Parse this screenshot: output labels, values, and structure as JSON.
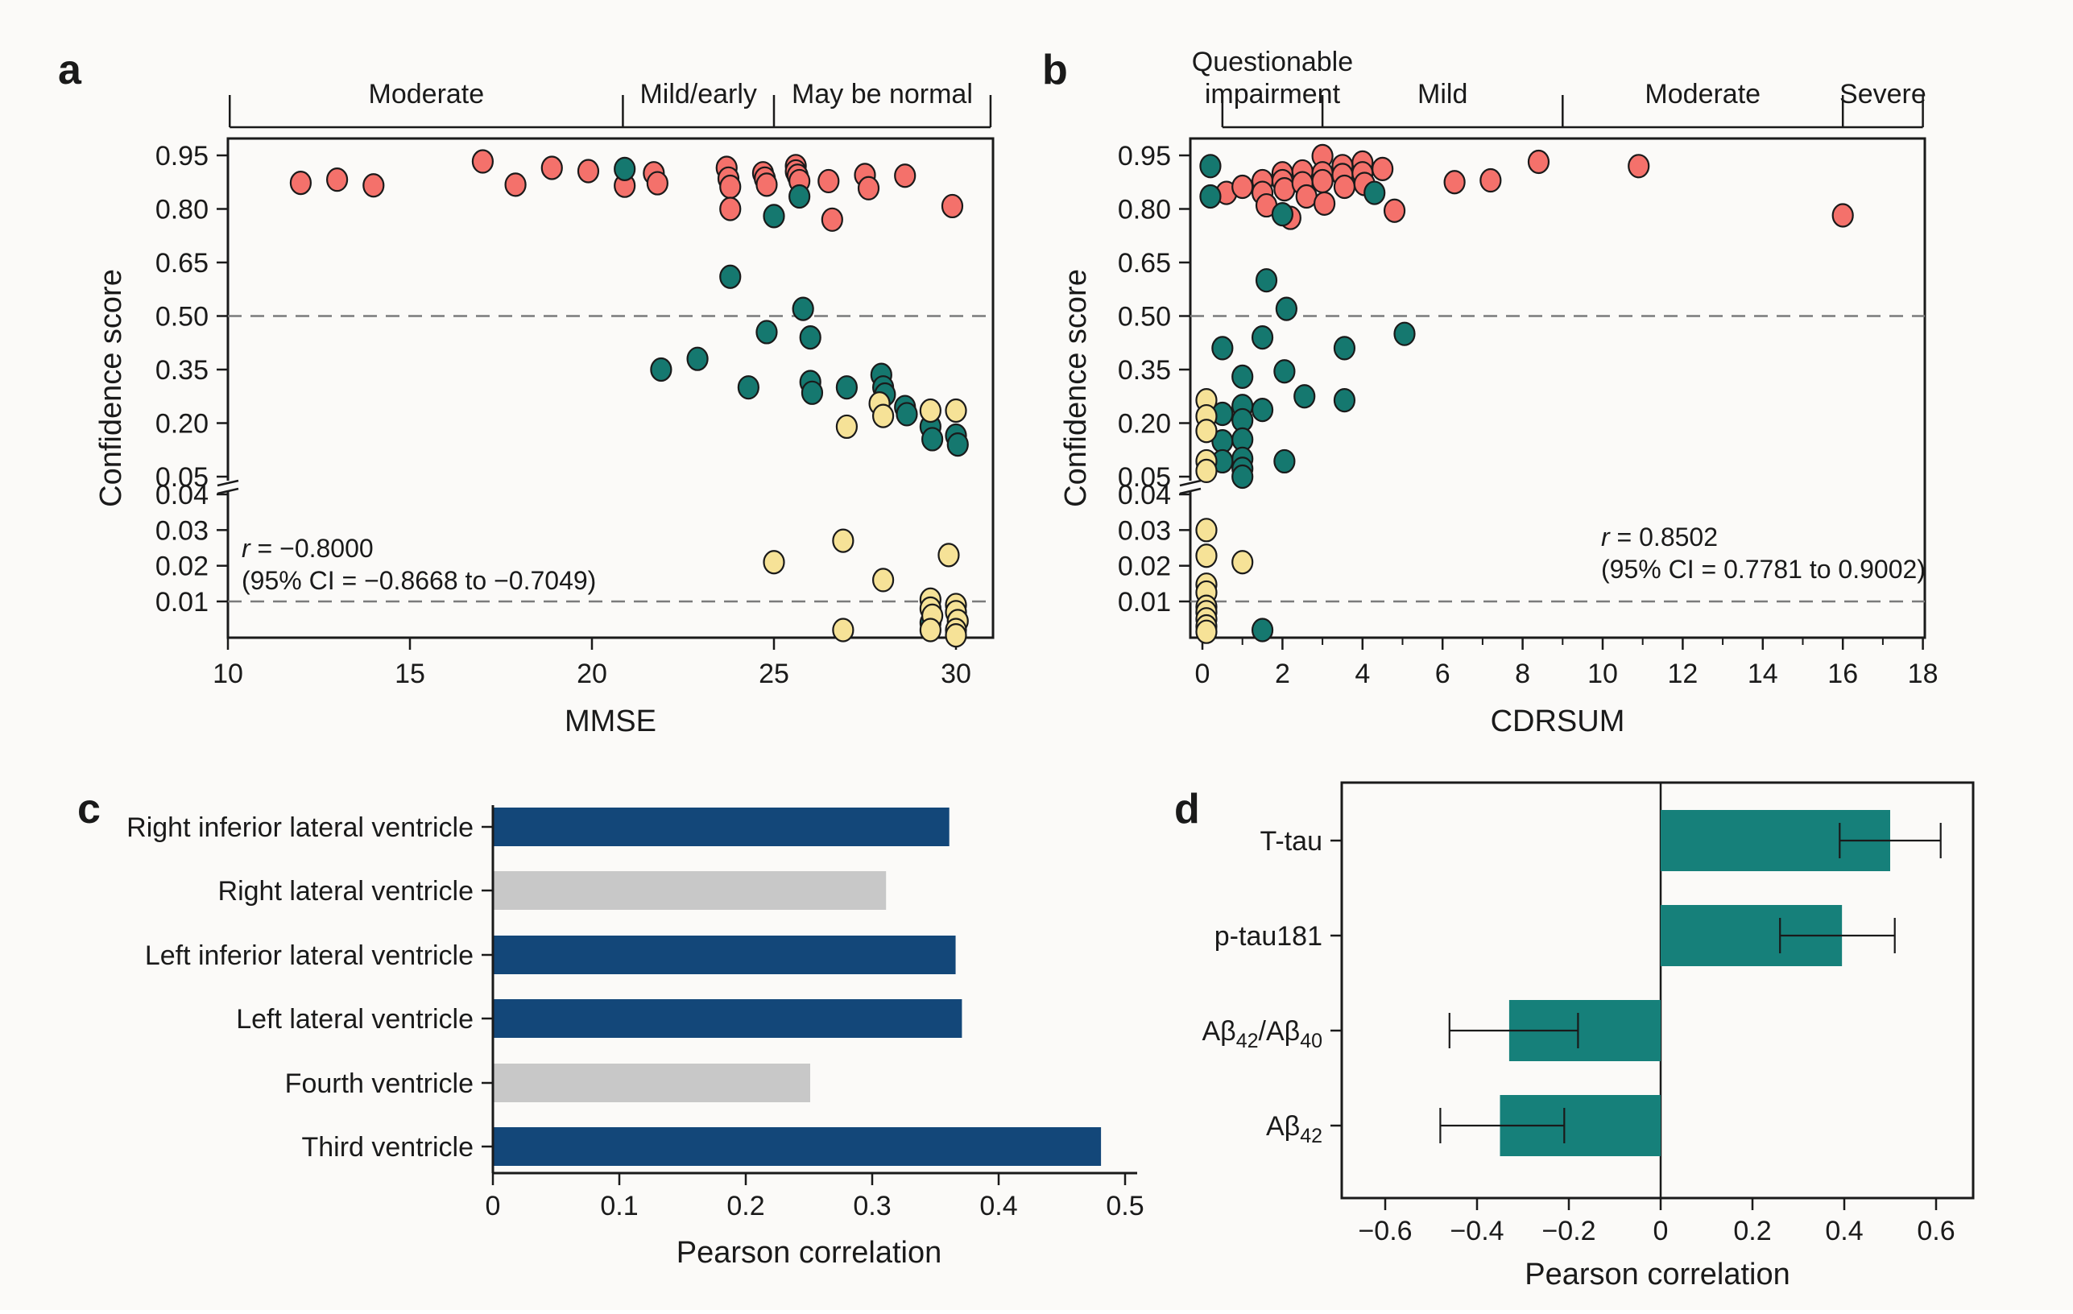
{
  "figure": {
    "background": "#fbfaf8",
    "panel_labels": {
      "a": "a",
      "b": "b",
      "c": "c",
      "d": "d"
    }
  },
  "chart_data": [
    {
      "id": "a",
      "type": "scatter",
      "xlabel": "MMSE",
      "ylabel": "Confidence score",
      "x_ticks": [
        10,
        15,
        20,
        25,
        30
      ],
      "x_tick_labels": [
        "10",
        "15",
        "20",
        "25",
        "30"
      ],
      "x_range": [
        10,
        31
      ],
      "y_tick_values": [
        0.95,
        0.8,
        0.65,
        0.5,
        0.35,
        0.2,
        0.05,
        0.04,
        0.03,
        0.02,
        0.01
      ],
      "y_tick_labels": [
        "0.95",
        "0.80",
        "0.65",
        "0.50",
        "0.35",
        "0.20",
        "0.05",
        "0.04",
        "0.03",
        "0.02",
        "0.01"
      ],
      "y_axis_break_between": [
        0.05,
        0.04
      ],
      "dashed_lines": [
        0.5,
        0.01
      ],
      "top_brackets": [
        {
          "label": "Moderate",
          "from": 10.05,
          "to": 20.85
        },
        {
          "label": "Mild/early",
          "from": 20.85,
          "to": 25.0
        },
        {
          "label": "May be normal",
          "from": 25.0,
          "to": 30.95
        }
      ],
      "annotation": {
        "r": "r",
        "rest": " = −0.8000",
        "ci": "(95% CI = −0.8668 to −0.7049)"
      },
      "series": [
        {
          "name": "high-confidence-red",
          "color": "#F4716B",
          "points": [
            [
              12,
              0.873
            ],
            [
              13,
              0.882
            ],
            [
              14,
              0.866
            ],
            [
              17,
              0.933
            ],
            [
              17.9,
              0.868
            ],
            [
              18.9,
              0.915
            ],
            [
              19.9,
              0.906
            ],
            [
              20.9,
              0.865
            ],
            [
              21.7,
              0.9
            ],
            [
              21.8,
              0.872
            ],
            [
              23.7,
              0.915
            ],
            [
              23.75,
              0.885
            ],
            [
              23.8,
              0.862
            ],
            [
              23.8,
              0.8
            ],
            [
              24.7,
              0.9
            ],
            [
              24.75,
              0.885
            ],
            [
              24.8,
              0.868
            ],
            [
              25.6,
              0.92
            ],
            [
              25.6,
              0.905
            ],
            [
              25.65,
              0.893
            ],
            [
              25.7,
              0.878
            ],
            [
              26.5,
              0.878
            ],
            [
              26.6,
              0.77
            ],
            [
              27.5,
              0.895
            ],
            [
              27.6,
              0.858
            ],
            [
              28.6,
              0.893
            ],
            [
              29.9,
              0.808
            ]
          ]
        },
        {
          "name": "mid-confidence-teal",
          "color": "#15786F",
          "points": [
            [
              20.9,
              0.912
            ],
            [
              25.0,
              0.78
            ],
            [
              25.7,
              0.835
            ],
            [
              23.8,
              0.61
            ],
            [
              25.8,
              0.52
            ],
            [
              24.8,
              0.455
            ],
            [
              26.0,
              0.44
            ],
            [
              22.9,
              0.38
            ],
            [
              21.9,
              0.35
            ],
            [
              24.3,
              0.3
            ],
            [
              26.0,
              0.315
            ],
            [
              26.05,
              0.285
            ],
            [
              27.0,
              0.3
            ],
            [
              27.95,
              0.335
            ],
            [
              28.0,
              0.3
            ],
            [
              28.05,
              0.28
            ],
            [
              28.6,
              0.245
            ],
            [
              28.65,
              0.225
            ],
            [
              29.3,
              0.19
            ],
            [
              29.35,
              0.155
            ],
            [
              30.0,
              0.165
            ],
            [
              30.05,
              0.14
            ],
            [
              29.3,
              0.004
            ]
          ]
        },
        {
          "name": "low-confidence-yellow",
          "color": "#F6E297",
          "points": [
            [
              27.9,
              0.255
            ],
            [
              28.0,
              0.22
            ],
            [
              29.3,
              0.235
            ],
            [
              30.0,
              0.235
            ],
            [
              27.0,
              0.19
            ],
            [
              25.0,
              0.021
            ],
            [
              26.9,
              0.027
            ],
            [
              28.0,
              0.016
            ],
            [
              29.8,
              0.023
            ],
            [
              26.9,
              0.002
            ],
            [
              29.3,
              0.0105
            ],
            [
              29.3,
              0.008
            ],
            [
              29.35,
              0.006
            ],
            [
              29.3,
              0.002
            ],
            [
              30.0,
              0.009
            ],
            [
              30.0,
              0.007
            ],
            [
              30.05,
              0.0045
            ],
            [
              30.0,
              0.002
            ],
            [
              30.0,
              0.0005
            ]
          ]
        }
      ]
    },
    {
      "id": "b",
      "type": "scatter",
      "xlabel": "CDRSUM",
      "ylabel": "Confidence score",
      "x_ticks": [
        0,
        2,
        4,
        6,
        8,
        10,
        12,
        14,
        16,
        18
      ],
      "x_tick_labels": [
        "0",
        "2",
        "4",
        "6",
        "8",
        "10",
        "12",
        "14",
        "16",
        "18"
      ],
      "x_minor_ticks": [
        1,
        3,
        5,
        7,
        9,
        11,
        13,
        15,
        17
      ],
      "x_range": [
        0,
        18
      ],
      "y_tick_values": [
        0.95,
        0.8,
        0.65,
        0.5,
        0.35,
        0.2,
        0.05,
        0.04,
        0.03,
        0.02,
        0.01
      ],
      "y_tick_labels": [
        "0.95",
        "0.80",
        "0.65",
        "0.50",
        "0.35",
        "0.20",
        "0.05",
        "0.04",
        "0.03",
        "0.02",
        "0.01"
      ],
      "y_axis_break_between": [
        0.05,
        0.04
      ],
      "dashed_lines": [
        0.5,
        0.01
      ],
      "top_brackets": [
        {
          "label": "Questionable\nimpairment",
          "from": 0.5,
          "to": 3.0
        },
        {
          "label": "Mild",
          "from": 3.0,
          "to": 9.0
        },
        {
          "label": "Moderate",
          "from": 9.0,
          "to": 16.0
        },
        {
          "label": "Severe",
          "from": 16.0,
          "to": 18.0
        }
      ],
      "annotation": {
        "r": "r",
        "rest": " = 0.8502",
        "ci": "(95% CI = 0.7781 to 0.9002)"
      },
      "series": [
        {
          "name": "high-confidence-red",
          "color": "#F4716B",
          "points": [
            [
              0.6,
              0.845
            ],
            [
              1.0,
              0.862
            ],
            [
              1.5,
              0.878
            ],
            [
              1.5,
              0.845
            ],
            [
              1.6,
              0.81
            ],
            [
              2.0,
              0.9
            ],
            [
              2.0,
              0.878
            ],
            [
              2.05,
              0.855
            ],
            [
              2.2,
              0.775
            ],
            [
              2.5,
              0.905
            ],
            [
              2.5,
              0.872
            ],
            [
              2.6,
              0.835
            ],
            [
              3.0,
              0.948
            ],
            [
              3.0,
              0.9
            ],
            [
              3.0,
              0.878
            ],
            [
              3.05,
              0.815
            ],
            [
              3.5,
              0.92
            ],
            [
              3.5,
              0.895
            ],
            [
              3.55,
              0.862
            ],
            [
              4.0,
              0.93
            ],
            [
              4.0,
              0.9
            ],
            [
              4.05,
              0.87
            ],
            [
              4.5,
              0.912
            ],
            [
              4.8,
              0.795
            ],
            [
              6.3,
              0.875
            ],
            [
              7.2,
              0.88
            ],
            [
              8.4,
              0.932
            ],
            [
              10.9,
              0.92
            ],
            [
              16.0,
              0.782
            ]
          ]
        },
        {
          "name": "mid-confidence-teal",
          "color": "#15786F",
          "points": [
            [
              0.2,
              0.92
            ],
            [
              0.2,
              0.835
            ],
            [
              2.0,
              0.785
            ],
            [
              4.3,
              0.845
            ],
            [
              1.6,
              0.6
            ],
            [
              2.1,
              0.52
            ],
            [
              1.5,
              0.44
            ],
            [
              0.5,
              0.41
            ],
            [
              5.05,
              0.45
            ],
            [
              3.55,
              0.41
            ],
            [
              1.0,
              0.33
            ],
            [
              2.05,
              0.345
            ],
            [
              2.55,
              0.275
            ],
            [
              3.55,
              0.264
            ],
            [
              1.0,
              0.248
            ],
            [
              1.5,
              0.237
            ],
            [
              0.5,
              0.226
            ],
            [
              1.0,
              0.208
            ],
            [
              0.5,
              0.149
            ],
            [
              1.0,
              0.154
            ],
            [
              0.5,
              0.093
            ],
            [
              1.0,
              0.1
            ],
            [
              1.0,
              0.072
            ],
            [
              1.0,
              0.05
            ],
            [
              2.05,
              0.093
            ],
            [
              1.5,
              0.002
            ]
          ]
        },
        {
          "name": "low-confidence-yellow",
          "color": "#F6E297",
          "points": [
            [
              0.1,
              0.264
            ],
            [
              0.1,
              0.219
            ],
            [
              0.1,
              0.178
            ],
            [
              0.1,
              0.093
            ],
            [
              0.1,
              0.066
            ],
            [
              0.1,
              0.03
            ],
            [
              0.1,
              0.0228
            ],
            [
              1.0,
              0.021
            ],
            [
              0.1,
              0.0147
            ],
            [
              0.1,
              0.0125
            ],
            [
              0.1,
              0.0085
            ],
            [
              0.1,
              0.007
            ],
            [
              0.1,
              0.005
            ],
            [
              0.1,
              0.003
            ],
            [
              0.1,
              0.0015
            ]
          ]
        }
      ]
    },
    {
      "id": "c",
      "type": "bar",
      "orientation": "horizontal",
      "categories": [
        "Right inferior lateral ventricle",
        "Right lateral ventricle",
        "Left inferior lateral ventricle",
        "Left lateral ventricle",
        "Fourth ventricle",
        "Third ventricle"
      ],
      "values": [
        0.36,
        0.31,
        0.365,
        0.37,
        0.25,
        0.48
      ],
      "bar_colors": [
        "#134779",
        "#C8C8C8",
        "#134779",
        "#134779",
        "#C8C8C8",
        "#134779"
      ],
      "x_ticks": [
        0,
        0.1,
        0.2,
        0.3,
        0.4,
        0.5
      ],
      "x_tick_labels": [
        "0",
        "0.1",
        "0.2",
        "0.3",
        "0.4",
        "0.5"
      ],
      "xlabel": "Pearson correlation",
      "xlim": [
        0,
        0.5
      ]
    },
    {
      "id": "d",
      "type": "bar",
      "orientation": "horizontal",
      "categories": [
        "T-tau",
        "p-tau181",
        "Aβ42/Aβ40",
        "Aβ42"
      ],
      "category_segments": [
        [
          {
            "t": "T-tau"
          }
        ],
        [
          {
            "t": "p-tau181"
          }
        ],
        [
          {
            "t": "Aβ"
          },
          {
            "t": "42",
            "sub": true
          },
          {
            "t": "/Aβ"
          },
          {
            "t": "40",
            "sub": true
          }
        ],
        [
          {
            "t": "Aβ"
          },
          {
            "t": "42",
            "sub": true
          }
        ]
      ],
      "values": [
        0.5,
        0.395,
        -0.33,
        -0.35
      ],
      "error_bars": [
        [
          0.39,
          0.61
        ],
        [
          0.26,
          0.51
        ],
        [
          -0.46,
          -0.18
        ],
        [
          -0.48,
          -0.21
        ]
      ],
      "bar_color": "#16807A",
      "x_ticks": [
        -0.6,
        -0.4,
        -0.2,
        0,
        0.2,
        0.4,
        0.6
      ],
      "x_tick_labels": [
        "−0.6",
        "−0.4",
        "−0.2",
        "0",
        "0.2",
        "0.4",
        "0.6"
      ],
      "xlabel": "Pearson correlation",
      "xlim": [
        -0.69,
        0.68
      ]
    }
  ]
}
